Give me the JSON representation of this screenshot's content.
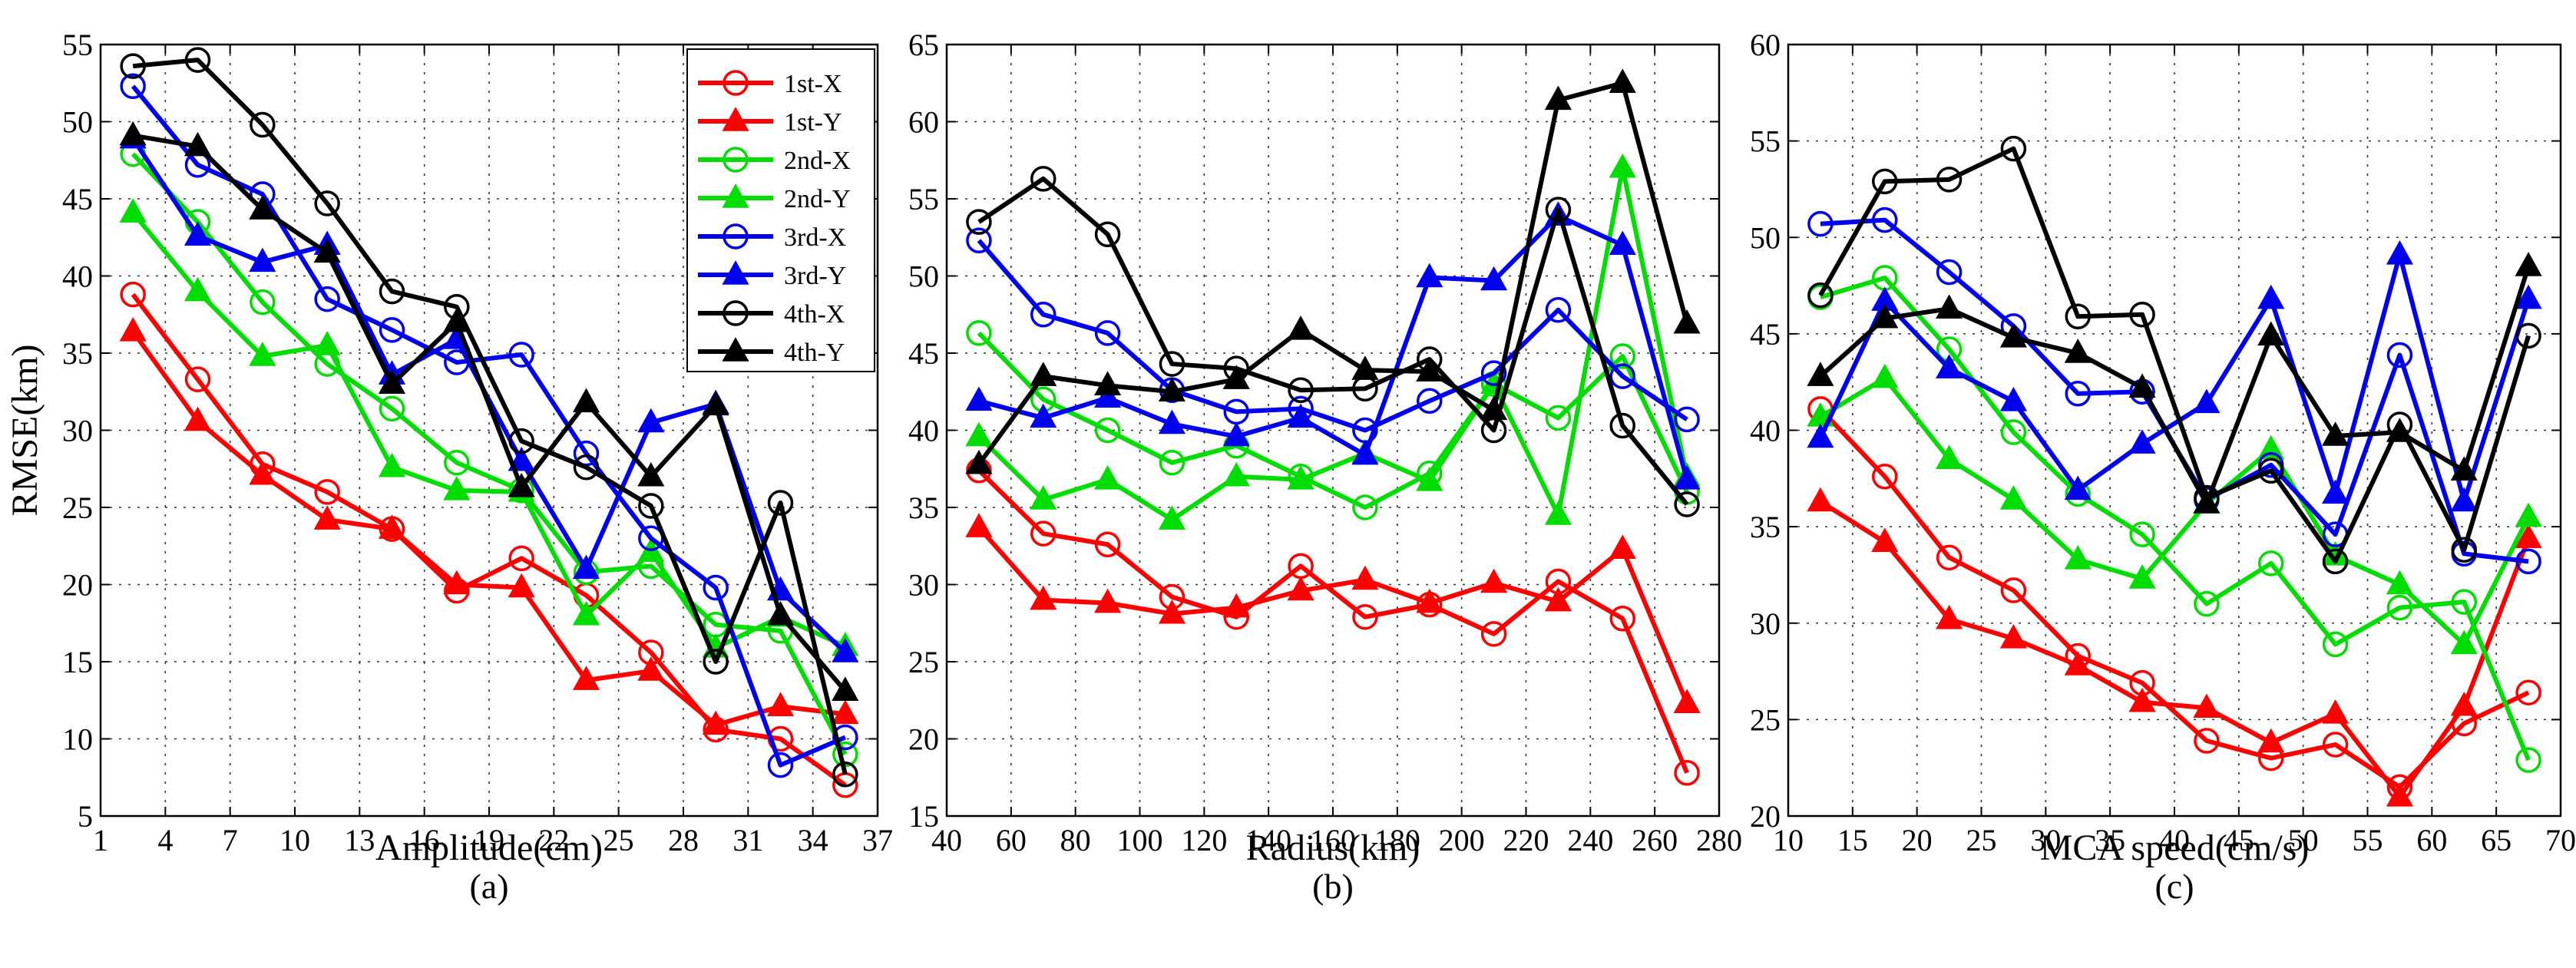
{
  "chart_data": [
    {
      "type": "line",
      "panel": "(a)",
      "xlabel": "Amplitude(cm)",
      "ylabel": "RMSE(km)",
      "xlim": [
        1,
        37
      ],
      "ylim": [
        5,
        55
      ],
      "xticks": [
        "1",
        "4",
        "7",
        "10",
        "13",
        "16",
        "19",
        "22",
        "25",
        "28",
        "31",
        "34",
        "37"
      ],
      "yticks": [
        "5",
        "10",
        "15",
        "20",
        "25",
        "30",
        "35",
        "40",
        "45",
        "50",
        "55"
      ],
      "x": [
        2.5,
        5.5,
        8.5,
        11.5,
        14.5,
        17.5,
        20.5,
        23.5,
        26.5,
        29.5,
        32.5,
        35.5
      ],
      "legend_position": "top-right",
      "series": [
        {
          "name": "1st-X",
          "color": "#ff0000",
          "marker": "circle",
          "values": [
            38.8,
            33.3,
            27.8,
            26.0,
            23.6,
            19.6,
            21.7,
            19.3,
            15.6,
            10.6,
            10.0,
            7.0
          ]
        },
        {
          "name": "1st-Y",
          "color": "#ff0000",
          "marker": "triangle",
          "values": [
            36.4,
            30.6,
            27.1,
            24.2,
            23.6,
            20.0,
            19.8,
            13.8,
            14.4,
            10.9,
            12.1,
            11.6
          ]
        },
        {
          "name": "2nd-X",
          "color": "#00dd00",
          "marker": "circle",
          "values": [
            47.9,
            43.5,
            38.3,
            34.3,
            31.4,
            27.9,
            26.1,
            20.8,
            21.2,
            17.4,
            17.0,
            9.0
          ]
        },
        {
          "name": "2nd-Y",
          "color": "#00dd00",
          "marker": "triangle",
          "values": [
            44.1,
            39.0,
            34.8,
            35.5,
            27.6,
            26.1,
            26.0,
            18.0,
            22.1,
            15.9,
            17.9,
            16.0
          ]
        },
        {
          "name": "3rd-X",
          "color": "#0000ee",
          "marker": "circle",
          "values": [
            52.3,
            47.2,
            45.3,
            38.5,
            36.5,
            34.4,
            34.9,
            28.5,
            23.0,
            19.8,
            8.3,
            10.1
          ]
        },
        {
          "name": "3rd-Y",
          "color": "#0000ee",
          "marker": "triangle",
          "values": [
            48.9,
            42.6,
            40.9,
            42.0,
            33.6,
            35.9,
            28.0,
            21.0,
            30.5,
            31.7,
            19.6,
            15.6
          ]
        },
        {
          "name": "4th-X",
          "color": "#000000",
          "marker": "circle",
          "values": [
            53.6,
            54.0,
            49.8,
            44.7,
            39.0,
            38.0,
            29.3,
            27.6,
            25.1,
            15.0,
            25.3,
            7.7
          ]
        },
        {
          "name": "4th-Y",
          "color": "#000000",
          "marker": "triangle",
          "values": [
            49.1,
            48.4,
            44.3,
            41.5,
            33.0,
            37.0,
            26.3,
            31.8,
            27.0,
            31.6,
            18.0,
            13.1
          ]
        }
      ]
    },
    {
      "type": "line",
      "panel": "(b)",
      "xlabel": "Radius(km)",
      "ylabel": "",
      "xlim": [
        40,
        280
      ],
      "ylim": [
        15,
        65
      ],
      "xticks": [
        "40",
        "60",
        "80",
        "100",
        "120",
        "140",
        "160",
        "180",
        "200",
        "220",
        "240",
        "260",
        "280"
      ],
      "yticks": [
        "15",
        "20",
        "25",
        "30",
        "35",
        "40",
        "45",
        "50",
        "55",
        "60",
        "65"
      ],
      "x": [
        50,
        70,
        90,
        110,
        130,
        150,
        170,
        190,
        210,
        230,
        250,
        270
      ],
      "series": [
        {
          "name": "1st-X",
          "color": "#ff0000",
          "marker": "circle",
          "values": [
            37.4,
            33.3,
            32.6,
            29.2,
            27.9,
            31.2,
            27.9,
            28.7,
            26.8,
            30.2,
            27.8,
            17.8
          ]
        },
        {
          "name": "1st-Y",
          "color": "#ff0000",
          "marker": "triangle",
          "values": [
            33.7,
            29.0,
            28.8,
            28.1,
            28.5,
            29.6,
            30.3,
            28.8,
            30.1,
            28.9,
            32.3,
            22.3
          ]
        },
        {
          "name": "2nd-X",
          "color": "#00dd00",
          "marker": "circle",
          "values": [
            46.3,
            42.0,
            40.0,
            37.9,
            39.0,
            37.0,
            35.0,
            37.2,
            43.0,
            40.8,
            44.8,
            36.0
          ]
        },
        {
          "name": "2nd-Y",
          "color": "#00dd00",
          "marker": "triangle",
          "values": [
            39.6,
            35.5,
            36.8,
            34.2,
            37.0,
            36.8,
            38.5,
            36.7,
            43.0,
            34.5,
            57.0,
            37.0
          ]
        },
        {
          "name": "3rd-X",
          "color": "#0000ee",
          "marker": "circle",
          "values": [
            52.3,
            47.5,
            46.3,
            42.6,
            41.2,
            41.4,
            40.0,
            41.9,
            43.7,
            47.8,
            43.5,
            40.7
          ]
        },
        {
          "name": "3rd-Y",
          "color": "#0000ee",
          "marker": "triangle",
          "values": [
            41.9,
            40.8,
            42.1,
            40.4,
            39.6,
            40.8,
            38.4,
            49.9,
            49.7,
            53.9,
            52.0,
            36.8
          ]
        },
        {
          "name": "4th-X",
          "color": "#000000",
          "marker": "circle",
          "values": [
            53.5,
            56.3,
            52.7,
            44.3,
            44.0,
            42.6,
            42.7,
            44.6,
            40.0,
            54.3,
            40.3,
            35.2
          ]
        },
        {
          "name": "4th-Y",
          "color": "#000000",
          "marker": "triangle",
          "values": [
            37.8,
            43.5,
            42.9,
            42.5,
            43.3,
            46.5,
            43.9,
            43.8,
            41.3,
            61.4,
            62.5,
            46.9
          ]
        }
      ]
    },
    {
      "type": "line",
      "panel": "(c)",
      "xlabel": "MCA speed(cm/s)",
      "ylabel": "",
      "xlim": [
        10,
        70
      ],
      "ylim": [
        20,
        60
      ],
      "xticks": [
        "10",
        "15",
        "20",
        "25",
        "30",
        "35",
        "40",
        "45",
        "50",
        "55",
        "60",
        "65",
        "70"
      ],
      "yticks": [
        "20",
        "25",
        "30",
        "35",
        "40",
        "45",
        "50",
        "55",
        "60"
      ],
      "x": [
        12.5,
        17.5,
        22.5,
        27.5,
        32.5,
        37.5,
        42.5,
        47.5,
        52.5,
        57.5,
        62.5,
        67.5
      ],
      "series": [
        {
          "name": "1st-X",
          "color": "#ff0000",
          "marker": "circle",
          "values": [
            41.1,
            37.6,
            33.4,
            31.7,
            28.3,
            26.9,
            23.9,
            23.0,
            23.7,
            21.5,
            24.8,
            26.4
          ]
        },
        {
          "name": "1st-Y",
          "color": "#ff0000",
          "marker": "triangle",
          "values": [
            36.3,
            34.2,
            30.2,
            29.2,
            27.8,
            25.9,
            25.6,
            23.8,
            25.3,
            21.0,
            25.7,
            34.4
          ]
        },
        {
          "name": "2nd-X",
          "color": "#00dd00",
          "marker": "circle",
          "values": [
            46.9,
            47.9,
            44.2,
            39.9,
            36.7,
            34.6,
            31.0,
            33.1,
            28.9,
            30.8,
            31.1,
            22.9
          ]
        },
        {
          "name": "2nd-Y",
          "color": "#00dd00",
          "marker": "triangle",
          "values": [
            40.7,
            42.7,
            38.5,
            36.4,
            33.3,
            32.3,
            36.2,
            39.0,
            33.5,
            32.0,
            28.9,
            35.5
          ]
        },
        {
          "name": "3rd-X",
          "color": "#0000ee",
          "marker": "circle",
          "values": [
            50.7,
            50.9,
            48.2,
            45.4,
            41.9,
            42.0,
            36.4,
            38.2,
            34.6,
            43.9,
            33.6,
            33.2
          ]
        },
        {
          "name": "3rd-Y",
          "color": "#0000ee",
          "marker": "triangle",
          "values": [
            39.6,
            46.7,
            43.2,
            41.5,
            36.9,
            39.3,
            41.4,
            46.8,
            36.7,
            49.1,
            36.3,
            46.8
          ]
        },
        {
          "name": "4th-X",
          "color": "#000000",
          "marker": "circle",
          "values": [
            47.0,
            52.9,
            53.0,
            54.6,
            45.9,
            46.0,
            36.5,
            37.9,
            33.2,
            40.3,
            33.8,
            44.9
          ]
        },
        {
          "name": "4th-Y",
          "color": "#000000",
          "marker": "triangle",
          "values": [
            42.8,
            45.8,
            46.3,
            44.8,
            44.0,
            42.2,
            36.2,
            44.9,
            39.7,
            39.9,
            37.9,
            48.5
          ]
        }
      ]
    }
  ]
}
